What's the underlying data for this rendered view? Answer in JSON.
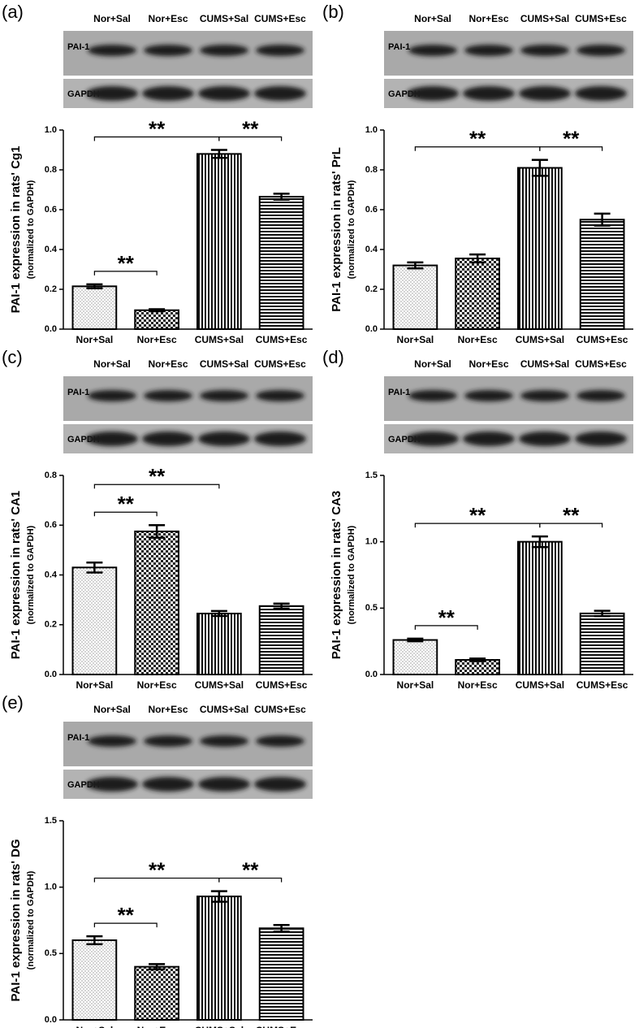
{
  "chart_data": [
    {
      "type": "bar",
      "panel_label": "(a)",
      "blot_rows": [
        "PAI-1",
        "GAPDH"
      ],
      "ylabel": "PAI-1 expression in rats' Cg1",
      "ylabel_sub": "(normalized to GAPDH)",
      "categories": [
        "Nor+Sal",
        "Nor+Esc",
        "CUMS+Sal",
        "CUMS+Esc"
      ],
      "values": [
        0.215,
        0.095,
        0.88,
        0.665
      ],
      "errors": [
        0.01,
        0.005,
        0.02,
        0.015
      ],
      "bar_patterns": [
        "dots",
        "checker",
        "vertical",
        "horizontal"
      ],
      "color": "#000000",
      "ylim": [
        0,
        1.0
      ],
      "yticks": [
        {
          "value": 0,
          "label": "0.0"
        },
        0.2,
        0.4,
        0.6,
        0.8,
        {
          "value": 1.0,
          "label": "1.0"
        }
      ],
      "brackets": [
        {
          "between": [
            "Nor+Sal",
            "Nor+Esc"
          ],
          "label": "**"
        },
        {
          "between": [
            "Nor+Sal",
            "CUMS+Sal"
          ],
          "label": "**"
        },
        {
          "between": [
            "CUMS+Sal",
            "CUMS+Esc"
          ],
          "label": "**"
        }
      ]
    },
    {
      "type": "bar",
      "panel_label": "(b)",
      "blot_rows": [
        "PAI-1",
        "GAPDH"
      ],
      "ylabel": "PAI-1 expression in rats' PrL",
      "ylabel_sub": "(normalized to GAPDH)",
      "categories": [
        "Nor+Sal",
        "Nor+Esc",
        "CUMS+Sal",
        "CUMS+Esc"
      ],
      "values": [
        0.32,
        0.355,
        0.81,
        0.55
      ],
      "errors": [
        0.015,
        0.02,
        0.04,
        0.03
      ],
      "bar_patterns": [
        "dots",
        "checker",
        "vertical",
        "horizontal"
      ],
      "color": "#000000",
      "ylim": [
        0,
        1.0
      ],
      "yticks": [
        {
          "value": 0,
          "label": "0.0"
        },
        0.2,
        0.4,
        0.6,
        0.8,
        {
          "value": 1.0,
          "label": "1.0"
        }
      ],
      "brackets": [
        {
          "between": [
            "Nor+Sal",
            "CUMS+Sal"
          ],
          "label": "**"
        },
        {
          "between": [
            "CUMS+Sal",
            "CUMS+Esc"
          ],
          "label": "**"
        }
      ]
    },
    {
      "type": "bar",
      "panel_label": "(c)",
      "blot_rows": [
        "PAI-1",
        "GAPDH"
      ],
      "ylabel": "PAI-1 expression in rats' CA1",
      "ylabel_sub": "(normalized to GAPDH)",
      "categories": [
        "Nor+Sal",
        "Nor+Esc",
        "CUMS+Sal",
        "CUMS+Esc"
      ],
      "values": [
        0.43,
        0.575,
        0.245,
        0.275
      ],
      "errors": [
        0.02,
        0.025,
        0.01,
        0.01
      ],
      "bar_patterns": [
        "dots",
        "checker",
        "vertical",
        "horizontal"
      ],
      "color": "#000000",
      "ylim": [
        0,
        0.8
      ],
      "yticks": [
        {
          "value": 0,
          "label": "0.0"
        },
        0.2,
        0.4,
        0.6,
        0.8
      ],
      "brackets": [
        {
          "between": [
            "Nor+Sal",
            "Nor+Esc"
          ],
          "label": "**"
        },
        {
          "between": [
            "Nor+Sal",
            "CUMS+Sal"
          ],
          "label": "**"
        }
      ]
    },
    {
      "type": "bar",
      "panel_label": "(d)",
      "blot_rows": [
        "PAI-1",
        "GAPDH"
      ],
      "ylabel": "PAI-1 expression in rats' CA3",
      "ylabel_sub": "(normalized to GAPDH)",
      "categories": [
        "Nor+Sal",
        "Nor+Esc",
        "CUMS+Sal",
        "CUMS+Esc"
      ],
      "values": [
        0.26,
        0.11,
        1.0,
        0.46
      ],
      "errors": [
        0.01,
        0.01,
        0.04,
        0.02
      ],
      "bar_patterns": [
        "dots",
        "checker",
        "vertical",
        "horizontal"
      ],
      "color": "#000000",
      "ylim": [
        0,
        1.5
      ],
      "yticks": [
        {
          "value": 0,
          "label": "0.0"
        },
        0.5,
        {
          "value": 1.0,
          "label": "1.0"
        },
        1.5
      ],
      "brackets": [
        {
          "between": [
            "Nor+Sal",
            "Nor+Esc"
          ],
          "label": "**"
        },
        {
          "between": [
            "Nor+Sal",
            "CUMS+Sal"
          ],
          "label": "**"
        },
        {
          "between": [
            "CUMS+Sal",
            "CUMS+Esc"
          ],
          "label": "**"
        }
      ]
    },
    {
      "type": "bar",
      "panel_label": "(e)",
      "blot_rows": [
        "PAI-1",
        "GAPDH"
      ],
      "ylabel": "PAI-1 expression in rats' DG",
      "ylabel_sub": "(normalized to GAPDH)",
      "categories": [
        "Nor+Sal",
        "Nor+Esc",
        "CUMS+Sal",
        "CUMS+Esc"
      ],
      "values": [
        0.6,
        0.4,
        0.93,
        0.69
      ],
      "errors": [
        0.03,
        0.02,
        0.04,
        0.025
      ],
      "bar_patterns": [
        "dots",
        "checker",
        "vertical",
        "horizontal"
      ],
      "color": "#000000",
      "ylim": [
        0,
        1.5
      ],
      "yticks": [
        {
          "value": 0,
          "label": "0.0"
        },
        0.5,
        {
          "value": 1.0,
          "label": "1.0"
        },
        1.5
      ],
      "brackets": [
        {
          "between": [
            "Nor+Sal",
            "Nor+Esc"
          ],
          "label": "**"
        },
        {
          "between": [
            "Nor+Sal",
            "CUMS+Sal"
          ],
          "label": "**"
        },
        {
          "between": [
            "CUMS+Sal",
            "CUMS+Esc"
          ],
          "label": "**"
        }
      ]
    }
  ]
}
